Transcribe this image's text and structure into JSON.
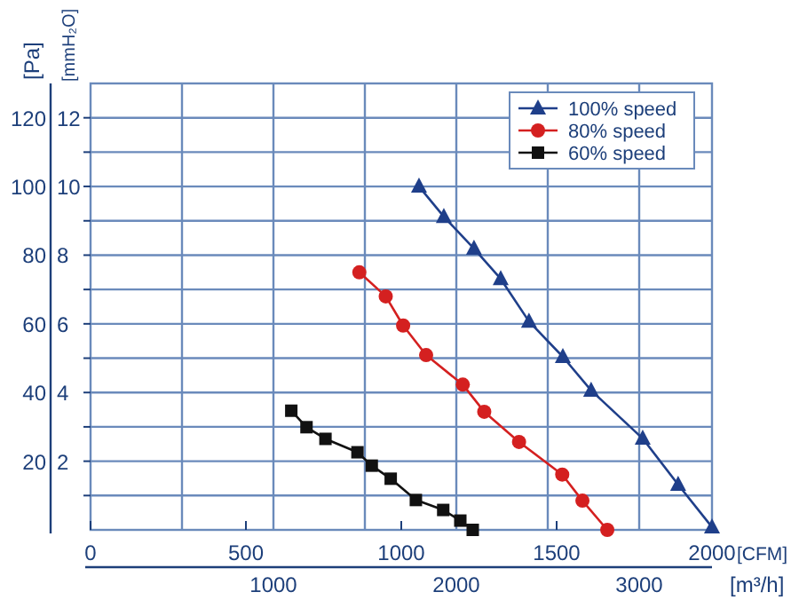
{
  "chart_data": {
    "type": "line",
    "xlabel": "[CFM]",
    "x2label": "[m³/h]",
    "ylabel": "[Pa]",
    "y2label": "[mmH₂O]",
    "xlim": [
      0,
      2000
    ],
    "xticks": [
      0,
      500,
      1000,
      1500,
      2000
    ],
    "x2lim": [
      0,
      3398
    ],
    "x2ticks": [
      {
        "value": 500,
        "label": null
      },
      1000,
      {
        "value": 1500,
        "label": null
      },
      2000,
      {
        "value": 2500,
        "label": null
      },
      3000
    ],
    "ylim": [
      0,
      130
    ],
    "yticks": [
      20,
      40,
      60,
      80,
      100,
      120
    ],
    "y2lim": [
      0,
      13
    ],
    "y2ticks": [
      {
        "value": 1,
        "label": null
      },
      2,
      {
        "value": 3,
        "label": null
      },
      4,
      {
        "value": 5,
        "label": null
      },
      6,
      {
        "value": 7,
        "label": null
      },
      8,
      {
        "value": 9,
        "label": null
      },
      10,
      {
        "value": 11,
        "label": null
      },
      12
    ],
    "grid": true,
    "legend": "top right",
    "line_style": "solid",
    "series": [
      {
        "name": "100% speed",
        "color": "#1f3f8a",
        "marker": "triangle",
        "x": [
          1057,
          1137,
          1234,
          1320,
          1411,
          1520,
          1611,
          1777,
          1891,
          2000
        ],
        "values": [
          100,
          91.2,
          81.9,
          73.1,
          60.7,
          50.4,
          40.6,
          26.6,
          13.2,
          0.8
        ]
      },
      {
        "name": "80% speed",
        "color": "#d42020",
        "marker": "circle",
        "x": [
          865,
          950,
          1006,
          1080,
          1198,
          1267,
          1379,
          1518,
          1583,
          1663
        ],
        "values": [
          75,
          68,
          59.5,
          50.9,
          42.3,
          34.4,
          25.6,
          16.1,
          8.5,
          0
        ]
      },
      {
        "name": "60% speed",
        "color": "#111111",
        "marker": "square",
        "x": [
          646,
          695,
          756,
          859,
          905,
          966,
          1047,
          1135,
          1190,
          1230
        ],
        "values": [
          34.7,
          29.9,
          26.5,
          22.6,
          18.7,
          14.9,
          8.7,
          5.8,
          2.7,
          0
        ]
      }
    ]
  }
}
